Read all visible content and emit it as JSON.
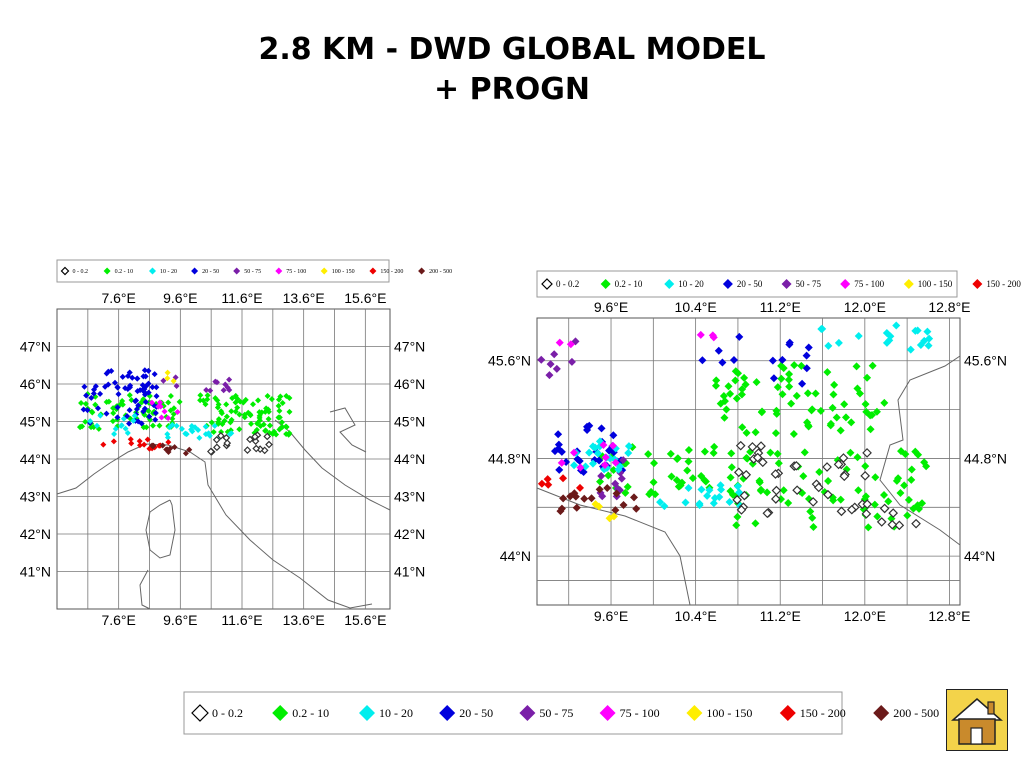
{
  "title": {
    "line1": "2.8 KM - DWD GLOBAL MODEL",
    "line2": "+ PROGN"
  },
  "legend": {
    "categories": [
      {
        "label": "0 - 0.2",
        "color": "#ffffff",
        "stroke": "#000000"
      },
      {
        "label": "0.2 - 10",
        "color": "#00ee00"
      },
      {
        "label": "10 - 20",
        "color": "#00eeee"
      },
      {
        "label": "20 - 50",
        "color": "#0000dd"
      },
      {
        "label": "50 - 75",
        "color": "#7a1fa8"
      },
      {
        "label": "75 - 100",
        "color": "#ff00ff"
      },
      {
        "label": "100 - 150",
        "color": "#ffee00"
      },
      {
        "label": "150 - 200",
        "color": "#ee0000"
      },
      {
        "label": "200 - 500",
        "color": "#6b1a1a"
      }
    ]
  },
  "map_left": {
    "lon_ticks": [
      "7.6°E",
      "9.6°E",
      "11.6°E",
      "13.6°E",
      "15.6°E"
    ],
    "lat_ticks": [
      "47°N",
      "46°N",
      "45°N",
      "44°N",
      "43°N",
      "42°N",
      "41°N"
    ],
    "lon_range": [
      5.6,
      16.4
    ],
    "lat_range": [
      40.0,
      48.0
    ]
  },
  "map_right": {
    "lon_ticks": [
      "9.6°E",
      "10.4°E",
      "11.2°E",
      "12.0°E",
      "12.8°E"
    ],
    "lat_ticks": [
      "45.6°N",
      "44.8°N",
      "44°N"
    ],
    "lon_range": [
      8.9,
      12.9
    ],
    "lat_range": [
      43.6,
      45.95
    ]
  },
  "home_button": {
    "icon": "home-icon"
  }
}
